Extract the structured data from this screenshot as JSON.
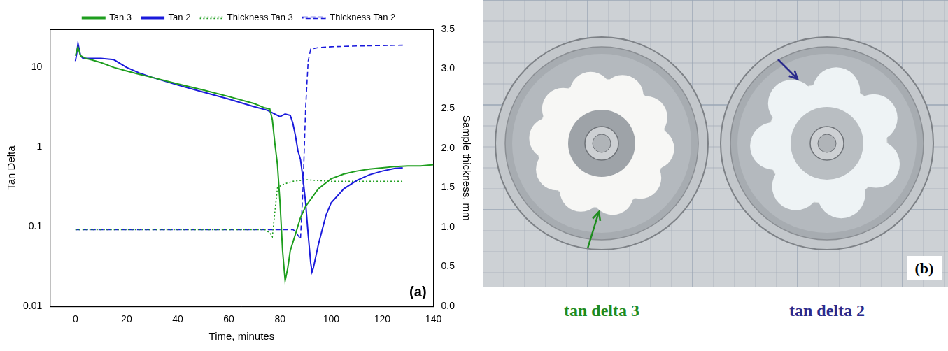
{
  "chart_data": {
    "type": "line",
    "x_label": "Time, minutes",
    "y_label": "Tan Delta",
    "y2_label": "Sample thickness, mm",
    "log": "y",
    "grid": false,
    "legend": "top",
    "xlim": [
      -10,
      140
    ],
    "xticks": [
      0,
      20,
      40,
      60,
      80,
      100,
      120,
      140
    ],
    "ylim": [
      0.01,
      30
    ],
    "yticks": [
      0.01,
      0.1,
      1,
      10
    ],
    "y2lim": [
      0,
      3.5
    ],
    "y2ticks": [
      {
        "value": 0,
        "label": "0.0"
      },
      0.5,
      {
        "value": 1,
        "label": "1.0"
      },
      1.5,
      {
        "value": 2,
        "label": "2.0"
      },
      2.5,
      {
        "value": 3,
        "label": "3.0"
      },
      3.5
    ],
    "annotations": [
      {
        "text": "(a)"
      }
    ],
    "series": [
      {
        "name": "Tan 3",
        "color": "#1e9e1e",
        "line_style": "solid",
        "x": [
          0,
          0.5,
          1,
          2,
          4,
          6,
          10,
          15,
          20,
          25,
          30,
          40,
          50,
          60,
          70,
          74,
          76,
          77,
          78,
          79,
          80,
          81,
          82,
          83,
          84,
          86,
          88,
          90,
          95,
          100,
          105,
          110,
          115,
          120,
          125,
          130,
          135,
          140
        ],
        "values": [
          14,
          16,
          18,
          14,
          13,
          12.5,
          11.5,
          10,
          9,
          8.2,
          7.5,
          6.2,
          5.2,
          4.3,
          3.5,
          3.1,
          3.0,
          2.2,
          1.1,
          0.6,
          0.2,
          0.05,
          0.021,
          0.03,
          0.05,
          0.08,
          0.13,
          0.18,
          0.3,
          0.4,
          0.46,
          0.5,
          0.53,
          0.55,
          0.57,
          0.58,
          0.58,
          0.6
        ]
      },
      {
        "name": "Tan 2",
        "color": "#1a1adc",
        "line_style": "solid",
        "x": [
          0,
          0.5,
          1,
          2,
          3,
          5,
          10,
          15,
          20,
          25,
          30,
          40,
          50,
          60,
          70,
          75,
          80,
          81,
          82,
          84,
          85,
          86,
          87,
          88,
          89,
          90,
          91,
          92,
          92.5,
          93,
          95,
          98,
          100,
          105,
          110,
          115,
          120,
          125,
          128
        ],
        "values": [
          12,
          15,
          20,
          14,
          13,
          13,
          13,
          12.5,
          10,
          8.5,
          7.5,
          6,
          4.9,
          4,
          3.2,
          2.9,
          2.4,
          2.5,
          2.6,
          2.5,
          2,
          1.4,
          0.9,
          0.7,
          0.4,
          0.2,
          0.08,
          0.035,
          0.027,
          0.03,
          0.06,
          0.14,
          0.2,
          0.3,
          0.38,
          0.45,
          0.5,
          0.54,
          0.55
        ]
      },
      {
        "name": "Thickness Tan 3",
        "color": "#1e9e1e",
        "line_style": "dotted",
        "axis": "y2",
        "x": [
          0,
          74,
          76,
          77,
          78,
          79,
          80,
          82,
          85,
          90,
          100,
          110,
          128
        ],
        "values": [
          0.97,
          0.97,
          0.93,
          0.88,
          1.2,
          1.5,
          1.52,
          1.55,
          1.58,
          1.6,
          1.58,
          1.58,
          1.58
        ]
      },
      {
        "name": "Thickness Tan 2",
        "color": "#1a1adc",
        "line_style": "dashed",
        "axis": "y2",
        "x": [
          0,
          84,
          85,
          86,
          87,
          88,
          89,
          90,
          91,
          92,
          95,
          100,
          110,
          128
        ],
        "values": [
          0.97,
          0.97,
          0.97,
          0.95,
          0.9,
          0.85,
          1.5,
          2.5,
          3.1,
          3.25,
          3.27,
          3.28,
          3.29,
          3.3
        ]
      }
    ]
  },
  "photo": {
    "panel_label": "(b)",
    "samples": [
      {
        "label": "tan delta 3",
        "color": "#1e8c1e"
      },
      {
        "label": "tan delta 2",
        "color": "#2b2b8c"
      }
    ]
  }
}
